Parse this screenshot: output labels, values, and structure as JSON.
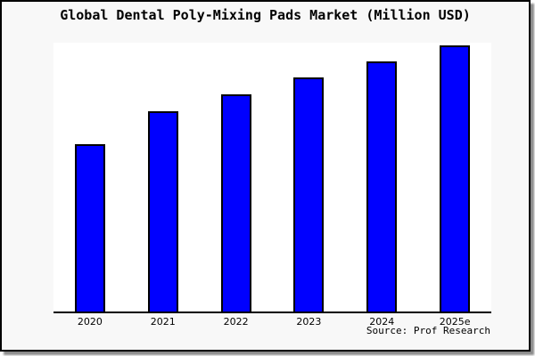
{
  "title": "Global Dental Poly-Mixing Pads Market (Million USD)",
  "source": "Source: Prof Research",
  "colors": {
    "page_background": "#ffffff",
    "card_background": "#f8f8f8",
    "card_border": "#000000",
    "shadow": "#8c8c8c"
  },
  "chart_data": {
    "type": "bar",
    "title": "Global Dental Poly-Mixing Pads Market (Million USD)",
    "categories": [
      "2020",
      "2021",
      "2022",
      "2023",
      "2024",
      "2025e"
    ],
    "values": [
      62.9,
      75.3,
      81.6,
      88.0,
      94.0,
      100.0
    ],
    "value_scale_note": "y-axis is unlabeled; values estimated relative to 2025e = 100",
    "xlabel": "",
    "ylabel": "",
    "ylim": [
      0,
      101
    ],
    "grid": false,
    "legend": false,
    "bar_color": "#0000ff",
    "bar_border_color": "#000000",
    "plot_background": "#ffffff",
    "axis_color": "#000000"
  }
}
